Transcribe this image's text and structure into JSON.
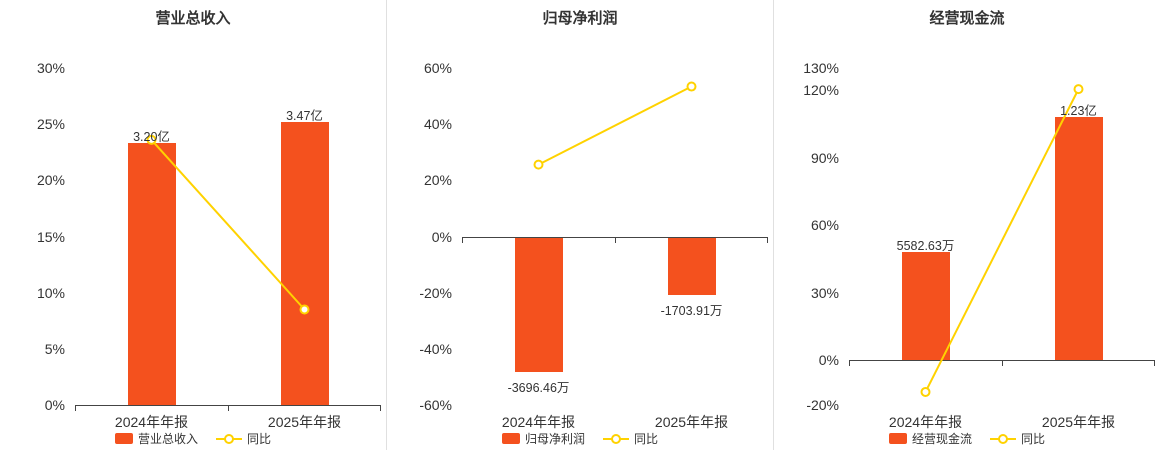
{
  "colors": {
    "bar": "#f4511e",
    "line": "#ffd200",
    "axis": "#444444",
    "divider": "#e0e0e0",
    "text": "#333333"
  },
  "chart_data": [
    {
      "type": "bar",
      "title": "营业总收入",
      "categories": [
        "2024年年报",
        "2025年年报"
      ],
      "ylim": [
        0,
        30
      ],
      "y_ticks": [
        0,
        5,
        10,
        15,
        20,
        25,
        30
      ],
      "grid": false,
      "legend_position": "bottom",
      "series": [
        {
          "name": "营业总收入",
          "type": "bar",
          "value_labels": [
            "3.20亿",
            "3.47亿"
          ],
          "plotted_pct": [
            23.3,
            25.2
          ]
        },
        {
          "name": "同比",
          "type": "line",
          "values_pct": [
            23.6,
            8.5
          ]
        }
      ]
    },
    {
      "type": "bar",
      "title": "归母净利润",
      "categories": [
        "2024年年报",
        "2025年年报"
      ],
      "ylim": [
        -60,
        60
      ],
      "y_ticks": [
        -60,
        -40,
        -20,
        0,
        20,
        40,
        60
      ],
      "grid": false,
      "legend_position": "bottom",
      "series": [
        {
          "name": "归母净利润",
          "type": "bar",
          "value_labels": [
            "-3696.46万",
            "-1703.91万"
          ],
          "plotted_pct": [
            -48.1,
            -21.0
          ]
        },
        {
          "name": "同比",
          "type": "line",
          "values_pct": [
            25.6,
            53.4
          ]
        }
      ]
    },
    {
      "type": "bar",
      "title": "经营现金流",
      "categories": [
        "2024年年报",
        "2025年年报"
      ],
      "ylim": [
        -20,
        130
      ],
      "y_ticks": [
        -20,
        0,
        30,
        60,
        90,
        120,
        130
      ],
      "grid": false,
      "legend_position": "bottom",
      "series": [
        {
          "name": "经营现金流",
          "type": "bar",
          "value_labels": [
            "5582.63万",
            "1.23亿"
          ],
          "plotted_pct": [
            48.1,
            108.1
          ]
        },
        {
          "name": "同比",
          "type": "line",
          "values_pct": [
            -14.2,
            120.6
          ]
        }
      ]
    }
  ]
}
